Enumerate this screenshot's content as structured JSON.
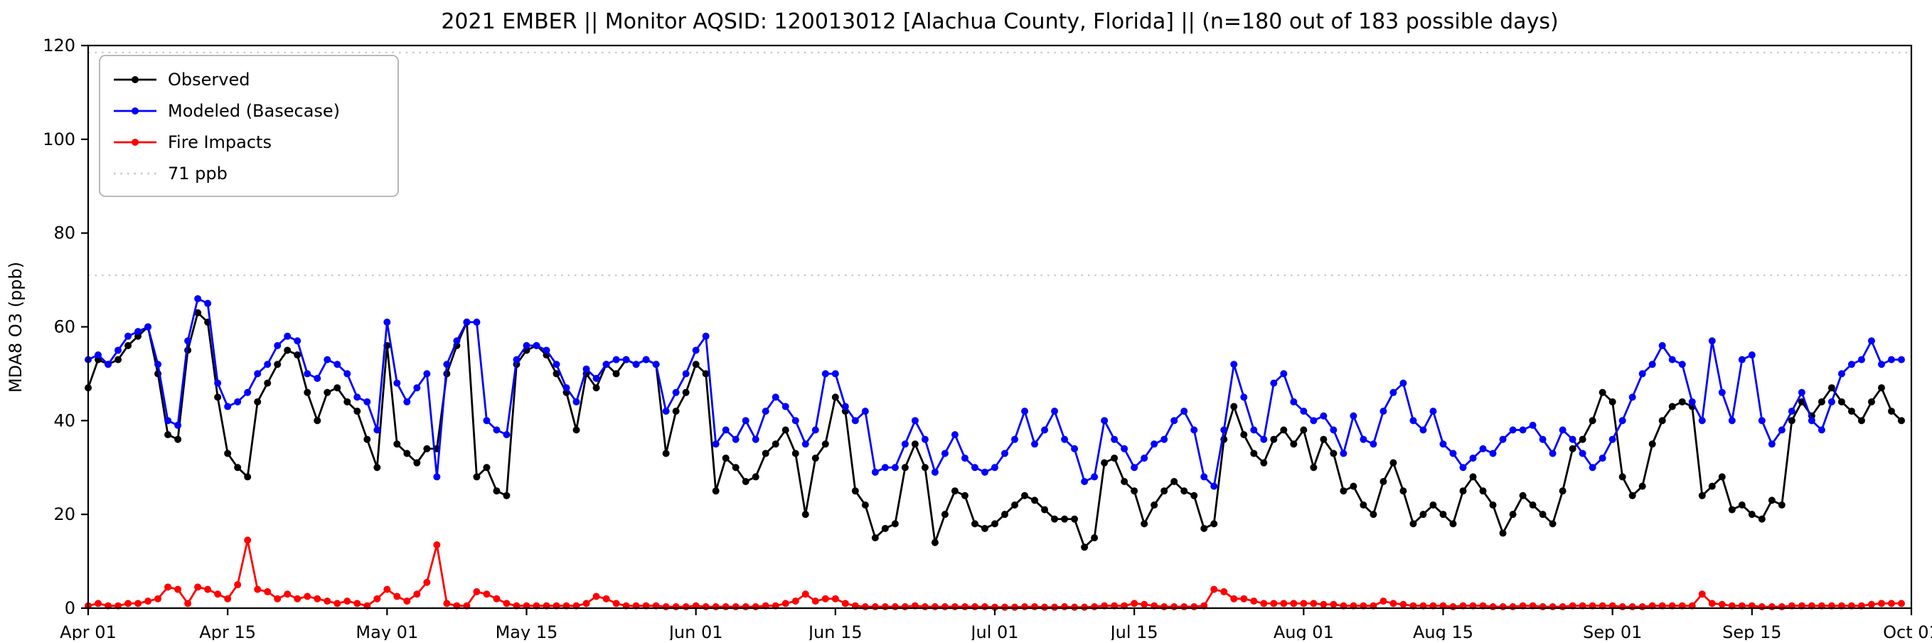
{
  "chart_data": {
    "type": "line",
    "title": "2021 EMBER || Monitor AQSID: 120013012 [Alachua County, Florida] || (n=180 out of 183 possible days)",
    "xlabel": "",
    "ylabel": "MDA8 O3 (ppb)",
    "x_range": [
      0,
      183
    ],
    "y_range": [
      0,
      120
    ],
    "x_start_date": "Apr 01",
    "x_end_date": "Oct 01",
    "grid": false,
    "legend_position": "upper-left",
    "y_ticks": [
      0,
      20,
      40,
      60,
      80,
      100,
      120
    ],
    "x_ticks": [
      {
        "label": "Apr 01",
        "day": 0
      },
      {
        "label": "Apr 15",
        "day": 14
      },
      {
        "label": "May 01",
        "day": 30
      },
      {
        "label": "May 15",
        "day": 44
      },
      {
        "label": "Jun 01",
        "day": 61
      },
      {
        "label": "Jun 15",
        "day": 75
      },
      {
        "label": "Jul 01",
        "day": 91
      },
      {
        "label": "Jul 15",
        "day": 105
      },
      {
        "label": "Aug 01",
        "day": 122
      },
      {
        "label": "Aug 15",
        "day": 136
      },
      {
        "label": "Sep 01",
        "day": 153
      },
      {
        "label": "Sep 15",
        "day": 167
      },
      {
        "label": "Oct 01",
        "day": 183
      }
    ],
    "reference_lines": [
      {
        "value": 71,
        "label": "71 ppb",
        "color": "#c9c9c9",
        "style": "dotted"
      },
      {
        "value": 118.5,
        "label": "",
        "color": "#c9c9c9",
        "style": "dotted"
      }
    ],
    "legend": [
      {
        "label": "Observed",
        "color": "#000000",
        "style": "solid"
      },
      {
        "label": "Modeled (Basecase)",
        "color": "#0000ff",
        "style": "solid"
      },
      {
        "label": "Fire Impacts",
        "color": "#ff0000",
        "style": "solid"
      },
      {
        "label": "71 ppb",
        "color": "#c9c9c9",
        "style": "dotted"
      }
    ],
    "series": [
      {
        "id": "observed",
        "name": "Observed",
        "color": "#000000",
        "values": [
          47,
          53,
          52,
          53,
          56,
          58,
          60,
          50,
          37,
          36,
          55,
          63,
          61,
          45,
          33,
          30,
          28,
          44,
          48,
          52,
          55,
          54,
          46,
          40,
          46,
          47,
          44,
          42,
          36,
          30,
          56,
          35,
          33,
          31,
          34,
          34,
          50,
          56,
          61,
          28,
          30,
          25,
          24,
          52,
          55,
          56,
          54,
          50,
          46,
          38,
          50,
          47,
          52,
          50,
          53,
          52,
          53,
          52,
          33,
          42,
          46,
          52,
          50,
          25,
          32,
          30,
          27,
          28,
          33,
          35,
          38,
          33,
          20,
          32,
          35,
          45,
          42,
          25,
          22,
          15,
          17,
          18,
          30,
          35,
          30,
          14,
          20,
          25,
          24,
          18,
          17,
          18,
          20,
          22,
          24,
          23,
          21,
          19,
          19,
          19,
          13,
          15,
          31,
          32,
          27,
          25,
          18,
          22,
          25,
          27,
          25,
          24,
          17,
          18,
          36,
          43,
          37,
          33,
          31,
          36,
          38,
          35,
          38,
          30,
          36,
          33,
          25,
          26,
          22,
          20,
          27,
          31,
          25,
          18,
          20,
          22,
          20,
          18,
          25,
          28,
          25,
          22,
          16,
          20,
          24,
          22,
          20,
          18,
          25,
          34,
          36,
          40,
          46,
          44,
          28,
          24,
          26,
          35,
          40,
          43,
          44,
          43,
          24,
          26,
          28,
          21,
          22,
          20,
          19,
          23,
          22,
          40,
          44,
          41,
          44,
          47,
          44,
          42,
          40,
          44,
          47,
          42,
          40
        ]
      },
      {
        "id": "modeled-basecase",
        "name": "Modeled (Basecase)",
        "color": "#0000ff",
        "values": [
          53,
          54,
          52,
          55,
          58,
          59,
          60,
          52,
          40,
          39,
          57,
          66,
          65,
          48,
          43,
          44,
          46,
          50,
          52,
          56,
          58,
          57,
          50,
          49,
          53,
          52,
          50,
          45,
          44,
          38,
          61,
          48,
          44,
          47,
          50,
          28,
          52,
          57,
          61,
          61,
          40,
          38,
          37,
          53,
          56,
          56,
          55,
          52,
          47,
          44,
          51,
          49,
          52,
          53,
          53,
          52,
          53,
          52,
          42,
          46,
          50,
          55,
          58,
          35,
          38,
          36,
          40,
          36,
          42,
          45,
          43,
          40,
          35,
          38,
          50,
          50,
          43,
          40,
          42,
          29,
          30,
          30,
          35,
          40,
          36,
          29,
          33,
          37,
          32,
          30,
          29,
          30,
          33,
          36,
          42,
          35,
          38,
          42,
          36,
          34,
          27,
          28,
          40,
          36,
          34,
          30,
          32,
          35,
          36,
          40,
          42,
          38,
          28,
          26,
          38,
          52,
          45,
          38,
          36,
          48,
          50,
          44,
          42,
          40,
          41,
          38,
          33,
          41,
          36,
          35,
          42,
          46,
          48,
          40,
          38,
          42,
          35,
          33,
          30,
          32,
          34,
          33,
          36,
          38,
          38,
          39,
          36,
          33,
          38,
          36,
          33,
          30,
          32,
          36,
          40,
          45,
          50,
          52,
          56,
          53,
          52,
          44,
          40,
          57,
          46,
          40,
          53,
          54,
          40,
          35,
          38,
          42,
          46,
          40,
          38,
          44,
          50,
          52,
          53,
          57,
          52,
          53,
          53
        ]
      },
      {
        "id": "fire-impacts",
        "name": "Fire Impacts",
        "color": "#ff0000",
        "values": [
          0.5,
          1,
          0.5,
          0.5,
          1,
          1,
          1.5,
          2,
          4.5,
          4,
          1,
          4.5,
          4,
          3,
          2,
          5,
          14.5,
          4,
          3.5,
          2,
          3,
          2,
          2.5,
          2,
          1.5,
          1,
          1.5,
          1,
          0.5,
          2,
          4,
          2.5,
          1.5,
          3,
          5.5,
          13.5,
          1,
          0.5,
          0.5,
          3.5,
          3,
          2,
          1,
          0.5,
          0.5,
          0.5,
          0.5,
          0.5,
          0.5,
          0.5,
          1,
          2.5,
          2,
          1,
          0.5,
          0.5,
          0.5,
          0.5,
          0.3,
          0.3,
          0.3,
          0.5,
          0.3,
          0.3,
          0.3,
          0.3,
          0.3,
          0.3,
          0.5,
          0.5,
          1,
          1.5,
          3,
          1.5,
          2,
          2,
          1,
          0.5,
          0.3,
          0.3,
          0.3,
          0.3,
          0.3,
          0.5,
          0.3,
          0.3,
          0.3,
          0.3,
          0.3,
          0.3,
          0.3,
          0.2,
          0.2,
          0.2,
          0.3,
          0.3,
          0.2,
          0.2,
          0.3,
          0.2,
          0.2,
          0.3,
          0.5,
          0.5,
          0.5,
          1,
          0.8,
          0.5,
          0.3,
          0.3,
          0.3,
          0.3,
          0.5,
          4,
          3.5,
          2,
          2,
          1.5,
          1,
          1,
          1,
          1,
          1,
          1,
          0.8,
          0.8,
          0.5,
          0.5,
          0.5,
          0.5,
          1.5,
          1,
          0.8,
          0.5,
          0.5,
          0.5,
          0.5,
          0.3,
          0.5,
          0.5,
          0.5,
          0.3,
          0.3,
          0.3,
          0.5,
          0.5,
          0.3,
          0.3,
          0.3,
          0.5,
          0.5,
          0.5,
          0.5,
          0.5,
          0.3,
          0.3,
          0.3,
          0.5,
          0.5,
          0.5,
          0.5,
          0.5,
          3,
          1,
          0.8,
          0.5,
          0.5,
          0.5,
          0.3,
          0.3,
          0.3,
          0.5,
          0.5,
          0.5,
          0.5,
          0.5,
          0.5,
          0.5,
          0.5,
          0.8,
          1,
          1,
          1
        ]
      }
    ]
  }
}
